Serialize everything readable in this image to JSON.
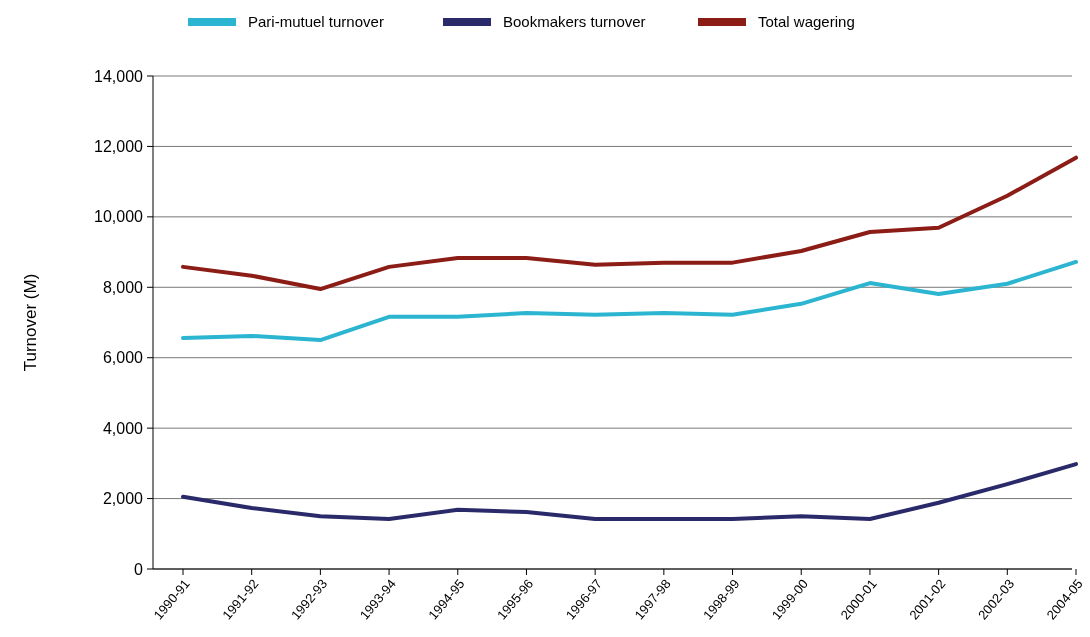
{
  "chart_data": {
    "type": "line",
    "ylabel": "Turnover (M)",
    "categories": [
      "1990-91",
      "1991-92",
      "1992-93",
      "1993-94",
      "1994-95",
      "1995-96",
      "1996-97",
      "1997-98",
      "1998-99",
      "1999-00",
      "2000-01",
      "2001-02",
      "2002-03",
      "2004-05"
    ],
    "series": [
      {
        "name": "Pari-mutuel turnover",
        "color": "#2bb5d1",
        "values": [
          6560,
          6620,
          6500,
          7160,
          7160,
          7270,
          7220,
          7270,
          7220,
          7530,
          8120,
          7810,
          8100,
          8720
        ]
      },
      {
        "name": "Bookmakers turnover",
        "color": "#2a2a6a",
        "values": [
          2050,
          1730,
          1500,
          1420,
          1680,
          1620,
          1420,
          1420,
          1420,
          1500,
          1420,
          1880,
          2410,
          2980
        ]
      },
      {
        "name": "Total wagering",
        "color": "#8b1c16",
        "values": [
          8580,
          8330,
          7950,
          8580,
          8830,
          8830,
          8640,
          8700,
          8700,
          9030,
          9570,
          9690,
          10600,
          11680
        ]
      }
    ],
    "ylim": [
      0,
      14000
    ],
    "yticks": [
      {
        "value": 0,
        "label": "0"
      },
      {
        "value": 2000,
        "label": "2,000"
      },
      {
        "value": 4000,
        "label": "4,000"
      },
      {
        "value": 6000,
        "label": "6,000"
      },
      {
        "value": 8000,
        "label": "8,000"
      },
      {
        "value": 10000,
        "label": "10,000"
      },
      {
        "value": 12000,
        "label": "12,000"
      },
      {
        "value": 14000,
        "label": "14,000"
      }
    ],
    "grid": "y",
    "legend": "top left",
    "marker": "none",
    "line_style": "solid"
  }
}
